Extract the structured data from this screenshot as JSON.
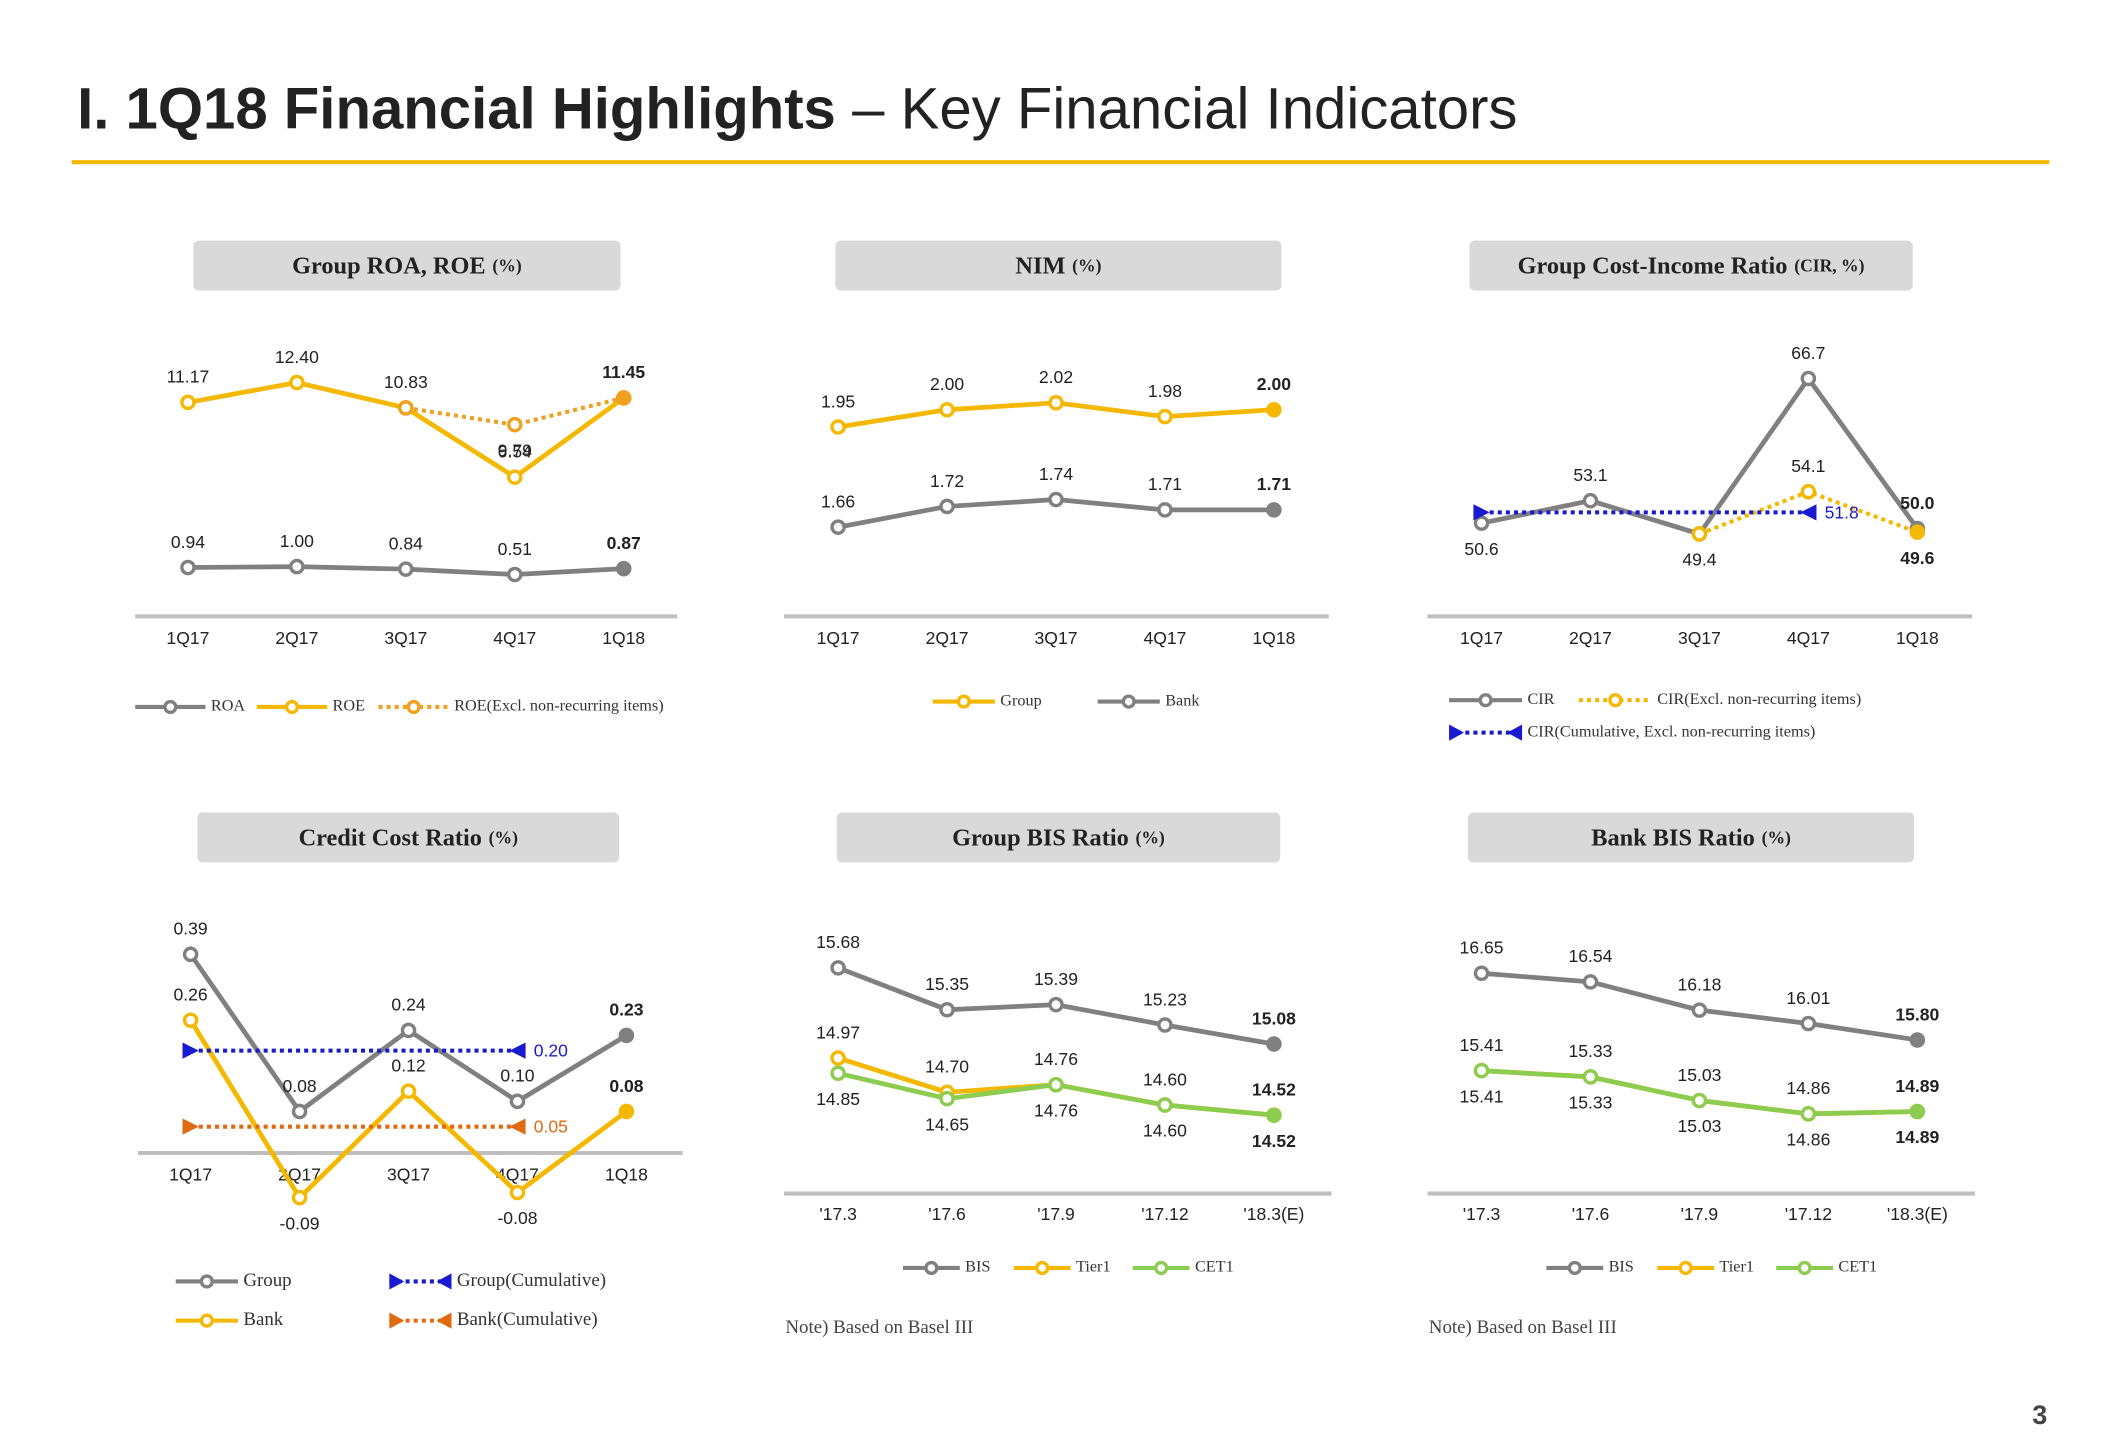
{
  "title": "I. 1Q18 Financial Highlights",
  "subtitle": "– Key Financial Indicators",
  "page_number": "3",
  "chart_data": [
    {
      "type": "line",
      "title": "Group ROA, ROE",
      "unit": "(%)",
      "categories": [
        "1Q17",
        "2Q17",
        "3Q17",
        "4Q17",
        "1Q18"
      ],
      "series": [
        {
          "name": "ROA",
          "color": "#808080",
          "style": "solid",
          "marker": "circle",
          "values": [
            0.94,
            1.0,
            0.84,
            0.51,
            0.87
          ],
          "value_labels": [
            "0.94",
            "1.00",
            "0.84",
            "0.51",
            "0.87"
          ]
        },
        {
          "name": "ROE",
          "color": "#f5b800",
          "style": "solid",
          "marker": "circle",
          "values": [
            11.17,
            12.4,
            10.83,
            6.54,
            11.45
          ],
          "value_labels": [
            "11.17",
            "12.40",
            "10.83",
            "6.54",
            "11.45"
          ]
        },
        {
          "name": "ROE(Excl. non-recurring items)",
          "color": "#f0a020",
          "style": "dotted",
          "marker": "circle",
          "values": [
            null,
            null,
            10.83,
            9.79,
            11.45
          ],
          "value_labels": [
            null,
            null,
            null,
            "9.79",
            null
          ]
        }
      ]
    },
    {
      "type": "line",
      "title": "NIM",
      "unit": "(%)",
      "categories": [
        "1Q17",
        "2Q17",
        "3Q17",
        "4Q17",
        "1Q18"
      ],
      "series": [
        {
          "name": "Group",
          "color": "#f5b800",
          "style": "solid",
          "marker": "circle",
          "values": [
            1.95,
            2.0,
            2.02,
            1.98,
            2.0
          ],
          "value_labels": [
            "1.95",
            "2.00",
            "2.02",
            "1.98",
            "2.00"
          ]
        },
        {
          "name": "Bank",
          "color": "#808080",
          "style": "solid",
          "marker": "circle",
          "values": [
            1.66,
            1.72,
            1.74,
            1.71,
            1.71
          ],
          "value_labels": [
            "1.66",
            "1.72",
            "1.74",
            "1.71",
            "1.71"
          ]
        }
      ]
    },
    {
      "type": "line",
      "title": "Group Cost-Income Ratio",
      "unit": "(CIR, %)",
      "categories": [
        "1Q17",
        "2Q17",
        "3Q17",
        "4Q17",
        "1Q18"
      ],
      "series": [
        {
          "name": "CIR",
          "color": "#808080",
          "style": "solid",
          "marker": "circle",
          "values": [
            50.6,
            53.1,
            49.4,
            66.7,
            50.0
          ],
          "value_labels": [
            "50.6",
            "53.1",
            "49.4",
            "66.7",
            "50.0"
          ]
        },
        {
          "name": "CIR(Excl. non-recurring items)",
          "color": "#f5b800",
          "style": "dotted",
          "marker": "circle",
          "values": [
            null,
            null,
            49.4,
            54.1,
            49.6
          ],
          "value_labels": [
            null,
            null,
            null,
            "54.1",
            "49.6"
          ]
        },
        {
          "name": "CIR(Cumulative, Excl. non-recurring items)",
          "color": "#1a1ad0",
          "style": "dotted",
          "marker": "triangle",
          "values": [
            51.8,
            51.8,
            51.8,
            51.8,
            null
          ],
          "value_labels": [
            null,
            null,
            null,
            "51.8",
            null
          ]
        }
      ]
    },
    {
      "type": "line",
      "title": "Credit Cost Ratio",
      "unit": "(%)",
      "categories": [
        "1Q17",
        "2Q17",
        "3Q17",
        "4Q17",
        "1Q18"
      ],
      "series": [
        {
          "name": "Group",
          "color": "#808080",
          "style": "solid",
          "marker": "circle",
          "values": [
            0.39,
            0.08,
            0.24,
            0.1,
            0.23
          ],
          "value_labels": [
            "0.39",
            "0.08",
            "0.24",
            "0.10",
            "0.23"
          ]
        },
        {
          "name": "Bank",
          "color": "#f5b800",
          "style": "solid",
          "marker": "circle",
          "values": [
            0.26,
            -0.09,
            0.12,
            -0.08,
            0.08
          ],
          "value_labels": [
            "0.26",
            "-0.09",
            "0.12",
            "-0.08",
            "0.08"
          ]
        },
        {
          "name": "Group(Cumulative)",
          "color": "#1a1ad0",
          "style": "dotted",
          "marker": "triangle",
          "values": [
            0.2,
            0.2,
            0.2,
            0.2,
            null
          ],
          "value_labels": [
            null,
            null,
            null,
            "0.20",
            null
          ]
        },
        {
          "name": "Bank(Cumulative)",
          "color": "#e06a10",
          "style": "dotted",
          "marker": "triangle",
          "values": [
            0.05,
            0.05,
            0.05,
            0.05,
            null
          ],
          "value_labels": [
            null,
            null,
            null,
            "0.05",
            null
          ]
        }
      ]
    },
    {
      "type": "line",
      "title": "Group BIS Ratio",
      "unit": "(%)",
      "note": "Note) Based on Basel III",
      "categories": [
        "'17.3",
        "'17.6",
        "'17.9",
        "'17.12",
        "'18.3(E)"
      ],
      "series": [
        {
          "name": "BIS",
          "color": "#808080",
          "style": "solid",
          "marker": "circle",
          "values": [
            15.68,
            15.35,
            15.39,
            15.23,
            15.08
          ],
          "value_labels": [
            "15.68",
            "15.35",
            "15.39",
            "15.23",
            "15.08"
          ]
        },
        {
          "name": "Tier1",
          "color": "#f5b800",
          "style": "solid",
          "marker": "circle",
          "values": [
            14.97,
            14.7,
            14.76,
            14.6,
            14.52
          ],
          "value_labels": [
            "14.97",
            "14.70",
            "14.76",
            "14.60",
            "14.52"
          ]
        },
        {
          "name": "CET1",
          "color": "#8ccc50",
          "style": "solid",
          "marker": "circle",
          "values": [
            14.85,
            14.65,
            14.76,
            14.6,
            14.52
          ],
          "value_labels": [
            "14.85",
            "14.65",
            "14.76",
            "14.60",
            "14.52"
          ]
        }
      ]
    },
    {
      "type": "line",
      "title": "Bank BIS Ratio",
      "unit": "(%)",
      "note": "Note) Based on Basel III",
      "categories": [
        "'17.3",
        "'17.6",
        "'17.9",
        "'17.12",
        "'18.3(E)"
      ],
      "series": [
        {
          "name": "BIS",
          "color": "#808080",
          "style": "solid",
          "marker": "circle",
          "values": [
            16.65,
            16.54,
            16.18,
            16.01,
            15.8
          ],
          "value_labels": [
            "16.65",
            "16.54",
            "16.18",
            "16.01",
            "15.80"
          ]
        },
        {
          "name": "Tier1",
          "color": "#f5b800",
          "style": "solid",
          "marker": "circle",
          "values": [
            15.41,
            15.33,
            15.03,
            14.86,
            14.89
          ],
          "value_labels": [
            "15.41",
            "15.33",
            "15.03",
            "14.86",
            "14.89"
          ]
        },
        {
          "name": "CET1",
          "color": "#8ccc50",
          "style": "solid",
          "marker": "circle",
          "values": [
            15.41,
            15.33,
            15.03,
            14.86,
            14.89
          ],
          "value_labels": [
            "15.41",
            "15.33",
            "15.03",
            "14.86",
            "14.89"
          ]
        }
      ]
    }
  ]
}
